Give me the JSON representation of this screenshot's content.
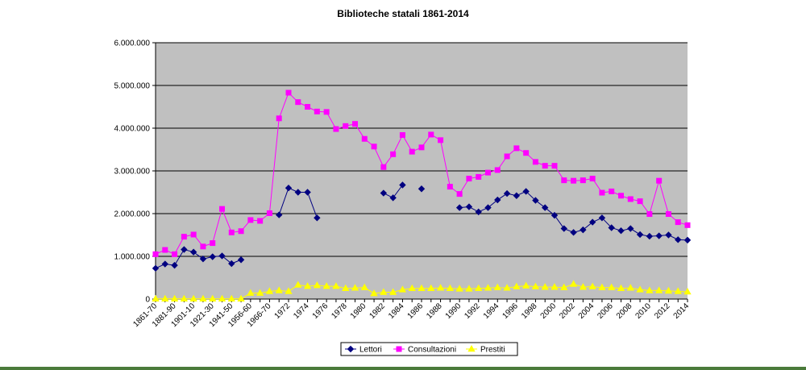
{
  "chart_data": {
    "type": "line",
    "title": "Biblioteche statali 1861-2014",
    "xlabel": "",
    "ylabel": "",
    "ylim": [
      0,
      6000000
    ],
    "y_ticks": [
      "0",
      "1.000.000",
      "2.000.000",
      "3.000.000",
      "4.000.000",
      "5.000.000",
      "6.000.000"
    ],
    "grid": true,
    "legend_position": "bottom",
    "plot_background": "#c0c0c0",
    "categories": [
      "1861-70",
      "1871-80",
      "1881-90",
      "1891-1900",
      "1901-10",
      "1911-20",
      "1921-30",
      "1931-40",
      "1941-50",
      "1951-55",
      "1956-60",
      "1961-65",
      "1966-70",
      "1971",
      "1972",
      "1973",
      "1974",
      "1975",
      "1976",
      "1977",
      "1978",
      "1979",
      "1980",
      "1981",
      "1982",
      "1983",
      "1984",
      "1985",
      "1986",
      "1987",
      "1988",
      "1989",
      "1990",
      "1991",
      "1992",
      "1993",
      "1994",
      "1995",
      "1996",
      "1997",
      "1998",
      "1999",
      "2000",
      "2001",
      "2002",
      "2003",
      "2004",
      "2005",
      "2006",
      "2007",
      "2008",
      "2009",
      "2010",
      "2011",
      "2012",
      "2013",
      "2014"
    ],
    "x_tick_labels": [
      "1861-70",
      "1881-90",
      "1901-10",
      "1921-30",
      "1941-50",
      "1956-60",
      "1966-70",
      "1972",
      "1974",
      "1976",
      "1978",
      "1980",
      "1982",
      "1984",
      "1986",
      "1988",
      "1990",
      "1992",
      "1994",
      "1996",
      "1998",
      "2000",
      "2002",
      "2004",
      "2006",
      "2008",
      "2010",
      "2012",
      "2014"
    ],
    "series": [
      {
        "name": "Lettori",
        "color": "#000080",
        "marker": "diamond",
        "values": [
          720000,
          820000,
          790000,
          1160000,
          1100000,
          940000,
          990000,
          1010000,
          830000,
          920000,
          null,
          null,
          null,
          1970000,
          2600000,
          2500000,
          2500000,
          1900000,
          null,
          null,
          null,
          null,
          null,
          null,
          2480000,
          2370000,
          2670000,
          null,
          2580000,
          null,
          null,
          null,
          2140000,
          2160000,
          2040000,
          2140000,
          2320000,
          2470000,
          2420000,
          2520000,
          2310000,
          2140000,
          1960000,
          1650000,
          1560000,
          1620000,
          1800000,
          1900000,
          1670000,
          1600000,
          1650000,
          1510000,
          1470000,
          1480000,
          1500000,
          1390000,
          1380000
        ]
      },
      {
        "name": "Consultazioni",
        "color": "#ff00ff",
        "marker": "square",
        "values": [
          1050000,
          1150000,
          1050000,
          1460000,
          1510000,
          1230000,
          1310000,
          2110000,
          1560000,
          1590000,
          1850000,
          1830000,
          2010000,
          4230000,
          4830000,
          4610000,
          4500000,
          4390000,
          4380000,
          3980000,
          4050000,
          4100000,
          3750000,
          3570000,
          3090000,
          3390000,
          3840000,
          3450000,
          3550000,
          3850000,
          3720000,
          2630000,
          2460000,
          2820000,
          2860000,
          2960000,
          3020000,
          3340000,
          3530000,
          3420000,
          3210000,
          3120000,
          3120000,
          2780000,
          2770000,
          2780000,
          2820000,
          2490000,
          2520000,
          2420000,
          2340000,
          2290000,
          1990000,
          2770000,
          1990000,
          1800000,
          1730000
        ]
      },
      {
        "name": "Prestiti",
        "color": "#ffff00",
        "marker": "triangle",
        "values": [
          5000,
          5000,
          5000,
          5000,
          5000,
          5000,
          5000,
          5000,
          5000,
          5000,
          140000,
          140000,
          180000,
          200000,
          180000,
          330000,
          300000,
          320000,
          300000,
          300000,
          250000,
          260000,
          270000,
          130000,
          160000,
          160000,
          220000,
          250000,
          250000,
          250000,
          260000,
          250000,
          240000,
          240000,
          250000,
          260000,
          270000,
          260000,
          290000,
          310000,
          290000,
          280000,
          280000,
          270000,
          350000,
          280000,
          290000,
          270000,
          270000,
          250000,
          260000,
          220000,
          200000,
          200000,
          190000,
          180000,
          170000
        ]
      }
    ]
  }
}
